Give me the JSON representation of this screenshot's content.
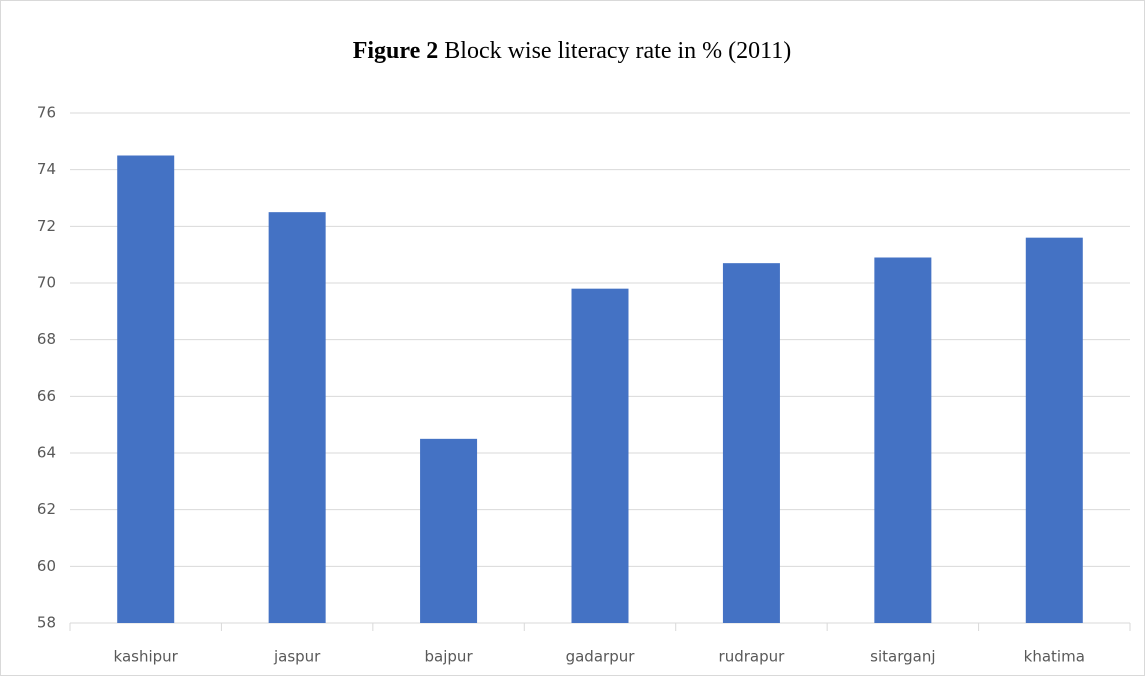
{
  "chart_data": {
    "type": "bar",
    "title_label": "Figure 2",
    "title": "Block wise literacy rate in %  (2011)",
    "categories": [
      "kashipur",
      "jaspur",
      "bajpur",
      "gadarpur",
      "rudrapur",
      "sitarganj",
      "khatima"
    ],
    "values": [
      74.5,
      72.5,
      64.5,
      69.8,
      70.7,
      70.9,
      71.6
    ],
    "color": "#4472c4",
    "ylim": [
      58,
      76
    ],
    "yticks": [
      58,
      60,
      62,
      64,
      66,
      68,
      70,
      72,
      74,
      76
    ],
    "grid": true
  }
}
